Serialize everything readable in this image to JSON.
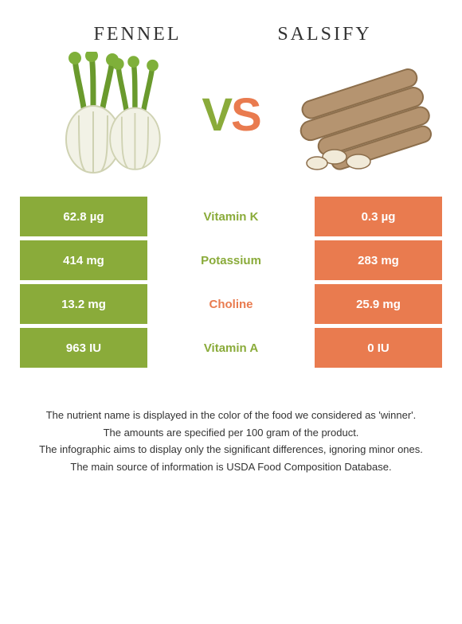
{
  "colors": {
    "left": "#8aab3a",
    "right": "#e97b4f",
    "background": "#ffffff",
    "text": "#333333"
  },
  "foods": {
    "left": {
      "name": "Fennel",
      "color": "#8aab3a"
    },
    "right": {
      "name": "Salsify",
      "color": "#e97b4f"
    }
  },
  "vs": {
    "v": "V",
    "s": "S"
  },
  "table": {
    "rows": [
      {
        "left": "62.8 µg",
        "nutrient": "Vitamin K",
        "right": "0.3 µg",
        "winner": "left"
      },
      {
        "left": "414 mg",
        "nutrient": "Potassium",
        "right": "283 mg",
        "winner": "left"
      },
      {
        "left": "13.2 mg",
        "nutrient": "Choline",
        "right": "25.9 mg",
        "winner": "right"
      },
      {
        "left": "963 IU",
        "nutrient": "Vitamin A",
        "right": "0 IU",
        "winner": "left"
      }
    ]
  },
  "notes": [
    "The nutrient name is displayed in the color of the food we considered as 'winner'.",
    "The amounts are specified per 100 gram of the product.",
    "The infographic aims to display only the significant differences, ignoring minor ones.",
    "The main source of information is USDA Food Composition Database."
  ]
}
